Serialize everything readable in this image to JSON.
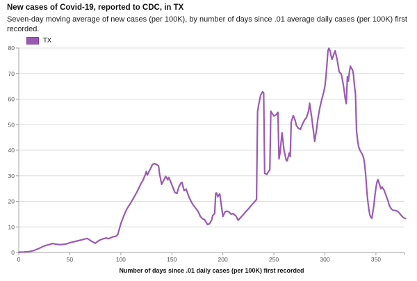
{
  "header": {
    "title": "New cases of Covid-19, reported to CDC, in TX",
    "subtitle": "Seven-day moving average of new cases (per 100K), by number of days since .01 average daily cases (per 100K) first recorded."
  },
  "legend": {
    "items": [
      {
        "label": "TX",
        "color": "#9b59b6",
        "border": "#7d3f9d"
      }
    ]
  },
  "chart_data": {
    "type": "line",
    "title": "New cases of Covid-19, reported to CDC, in TX",
    "xlabel": "Number of days since .01 daily cases (per 100K) first recorded",
    "ylabel": "",
    "x_range": [
      0,
      378
    ],
    "y_range": [
      0,
      80
    ],
    "x_ticks": [
      0,
      50,
      100,
      150,
      200,
      250,
      300,
      350
    ],
    "y_ticks": [
      0,
      10,
      20,
      30,
      40,
      50,
      60,
      70,
      80
    ],
    "grid": "horizontal",
    "legend_position": "top-left",
    "colors": {
      "line": "#9b59b6",
      "grid": "#dcdcdc",
      "axis": "#a3a3a3",
      "tick_text": "#4f4f4f"
    },
    "series": [
      {
        "name": "TX",
        "points": [
          [
            0,
            0.1
          ],
          [
            5,
            0.2
          ],
          [
            9,
            0.3
          ],
          [
            12,
            0.5
          ],
          [
            15,
            0.8
          ],
          [
            18,
            1.3
          ],
          [
            21,
            1.8
          ],
          [
            24,
            2.4
          ],
          [
            27,
            2.8
          ],
          [
            30,
            3.1
          ],
          [
            33,
            3.5
          ],
          [
            36,
            3.3
          ],
          [
            39,
            3.1
          ],
          [
            42,
            3.1
          ],
          [
            46,
            3.3
          ],
          [
            50,
            3.8
          ],
          [
            53,
            4.1
          ],
          [
            57,
            4.5
          ],
          [
            60,
            4.8
          ],
          [
            64,
            5.2
          ],
          [
            67,
            5.5
          ],
          [
            69,
            5.0
          ],
          [
            71,
            4.5
          ],
          [
            75,
            3.6
          ],
          [
            79,
            4.8
          ],
          [
            83,
            5.4
          ],
          [
            86,
            5.7
          ],
          [
            88,
            5.4
          ],
          [
            92,
            6.1
          ],
          [
            95,
            6.3
          ],
          [
            97,
            7.0
          ],
          [
            100,
            11.2
          ],
          [
            103,
            14.4
          ],
          [
            106,
            17.1
          ],
          [
            110,
            19.6
          ],
          [
            113,
            21.7
          ],
          [
            116,
            23.8
          ],
          [
            120,
            27.1
          ],
          [
            122,
            28.5
          ],
          [
            124,
            30.5
          ],
          [
            125,
            31.7
          ],
          [
            126,
            30.3
          ],
          [
            127,
            31.2
          ],
          [
            130,
            33.5
          ],
          [
            131,
            34.4
          ],
          [
            133,
            34.8
          ],
          [
            135,
            34.4
          ],
          [
            137,
            33.9
          ],
          [
            138,
            30.7
          ],
          [
            140,
            26.7
          ],
          [
            143,
            29.0
          ],
          [
            144,
            29.8
          ],
          [
            146,
            28.4
          ],
          [
            147,
            29.4
          ],
          [
            149,
            27.5
          ],
          [
            151,
            25.5
          ],
          [
            153,
            23.5
          ],
          [
            155,
            23.1
          ],
          [
            157,
            25.8
          ],
          [
            159,
            27.2
          ],
          [
            160,
            27.4
          ],
          [
            162,
            24.2
          ],
          [
            164,
            24.8
          ],
          [
            167,
            21.5
          ],
          [
            169,
            19.9
          ],
          [
            171,
            18.5
          ],
          [
            174,
            17.0
          ],
          [
            176,
            15.9
          ],
          [
            178,
            14.1
          ],
          [
            180,
            13.2
          ],
          [
            182,
            12.9
          ],
          [
            185,
            10.9
          ],
          [
            187,
            11.3
          ],
          [
            189,
            12.7
          ],
          [
            190,
            14.4
          ],
          [
            192,
            15.3
          ],
          [
            193,
            23.2
          ],
          [
            194,
            23.3
          ],
          [
            195,
            21.8
          ],
          [
            197,
            22.9
          ],
          [
            199,
            17.1
          ],
          [
            200,
            14.1
          ],
          [
            202,
            15.8
          ],
          [
            204,
            16.2
          ],
          [
            206,
            15.8
          ],
          [
            208,
            15.0
          ],
          [
            210,
            15.2
          ],
          [
            213,
            14.2
          ],
          [
            215,
            12.6
          ],
          [
            217,
            13.5
          ],
          [
            220,
            14.8
          ],
          [
            223,
            16.2
          ],
          [
            226,
            17.5
          ],
          [
            229,
            18.9
          ],
          [
            232,
            20.2
          ],
          [
            233,
            20.8
          ],
          [
            234,
            55.0
          ],
          [
            235,
            57.5
          ],
          [
            237,
            61.5
          ],
          [
            239,
            62.9
          ],
          [
            240,
            62.4
          ],
          [
            241,
            31.0
          ],
          [
            243,
            30.5
          ],
          [
            245,
            31.8
          ],
          [
            246,
            32.3
          ],
          [
            247,
            55.3
          ],
          [
            248,
            54.6
          ],
          [
            250,
            53.4
          ],
          [
            252,
            53.8
          ],
          [
            254,
            54.8
          ],
          [
            255,
            36.6
          ],
          [
            256,
            38.9
          ],
          [
            258,
            46.8
          ],
          [
            260,
            40.0
          ],
          [
            262,
            36.2
          ],
          [
            263,
            35.8
          ],
          [
            265,
            38.9
          ],
          [
            266,
            37.5
          ],
          [
            267,
            51.0
          ],
          [
            269,
            53.6
          ],
          [
            271,
            51.5
          ],
          [
            272,
            49.7
          ],
          [
            274,
            48.6
          ],
          [
            276,
            48.2
          ],
          [
            278,
            50.2
          ],
          [
            280,
            51.8
          ],
          [
            282,
            52.8
          ],
          [
            284,
            55.4
          ],
          [
            285,
            58.4
          ],
          [
            287,
            53.0
          ],
          [
            288,
            49.8
          ],
          [
            290,
            43.5
          ],
          [
            292,
            48.5
          ],
          [
            293,
            52.0
          ],
          [
            295,
            56.5
          ],
          [
            297,
            60.0
          ],
          [
            299,
            63.0
          ],
          [
            300,
            65.0
          ],
          [
            301,
            68.5
          ],
          [
            302,
            73.5
          ],
          [
            303,
            79.0
          ],
          [
            304,
            79.9
          ],
          [
            305,
            79.0
          ],
          [
            306,
            77.0
          ],
          [
            307,
            75.6
          ],
          [
            309,
            77.8
          ],
          [
            310,
            78.9
          ],
          [
            312,
            75.5
          ],
          [
            313,
            73.0
          ],
          [
            314,
            70.7
          ],
          [
            316,
            69.8
          ],
          [
            317,
            68.0
          ],
          [
            318,
            65.7
          ],
          [
            319,
            63.0
          ],
          [
            320,
            60.0
          ],
          [
            321,
            58.2
          ],
          [
            322,
            68.8
          ],
          [
            323,
            67.0
          ],
          [
            324,
            70.5
          ],
          [
            325,
            72.9
          ],
          [
            326,
            72.0
          ],
          [
            327,
            71.6
          ],
          [
            328,
            69.5
          ],
          [
            329,
            65.0
          ],
          [
            330,
            62.0
          ],
          [
            331,
            47.5
          ],
          [
            332,
            44.0
          ],
          [
            333,
            41.5
          ],
          [
            334,
            40.3
          ],
          [
            335,
            39.5
          ],
          [
            336,
            38.9
          ],
          [
            337,
            38.0
          ],
          [
            338,
            36.9
          ],
          [
            339,
            34.4
          ],
          [
            340,
            30.3
          ],
          [
            341,
            24.4
          ],
          [
            342,
            20.5
          ],
          [
            343,
            17.0
          ],
          [
            344,
            14.8
          ],
          [
            345,
            13.8
          ],
          [
            346,
            13.4
          ],
          [
            348,
            18.5
          ],
          [
            349,
            22.1
          ],
          [
            350,
            25.3
          ],
          [
            351,
            27.5
          ],
          [
            352,
            28.5
          ],
          [
            354,
            26.0
          ],
          [
            355,
            24.9
          ],
          [
            356,
            25.6
          ],
          [
            358,
            24.4
          ],
          [
            360,
            22.2
          ],
          [
            362,
            20.0
          ],
          [
            363,
            18.5
          ],
          [
            365,
            17.1
          ],
          [
            367,
            16.5
          ],
          [
            369,
            16.4
          ],
          [
            371,
            16.2
          ],
          [
            373,
            15.4
          ],
          [
            375,
            14.4
          ],
          [
            377,
            13.6
          ],
          [
            379,
            13.3
          ]
        ]
      }
    ]
  }
}
